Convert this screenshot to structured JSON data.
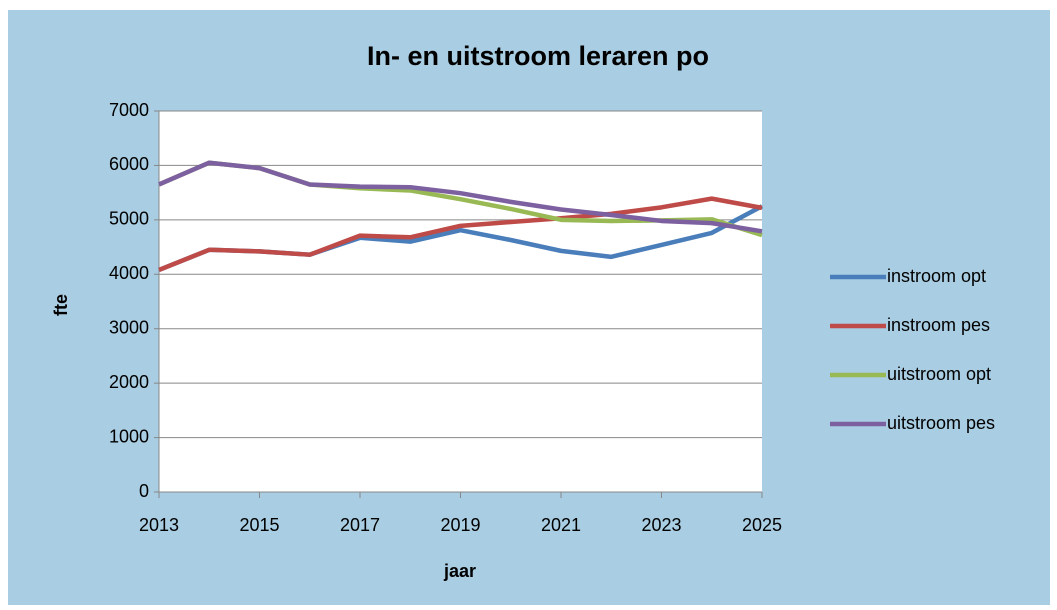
{
  "chart_data": {
    "type": "line",
    "title": "In- en uitstroom leraren po",
    "x_label": "jaar",
    "y_label": "fte",
    "x": [
      2013,
      2014,
      2015,
      2016,
      2017,
      2018,
      2019,
      2020,
      2021,
      2022,
      2023,
      2024,
      2025
    ],
    "series": [
      {
        "name": "instroom opt",
        "color": "#4a7ebb",
        "values": [
          4080,
          4450,
          4420,
          4360,
          4670,
          4600,
          4810,
          4630,
          4430,
          4320,
          4540,
          4760,
          5250
        ]
      },
      {
        "name": "instroom pes",
        "color": "#be4b48",
        "values": [
          4080,
          4450,
          4420,
          4360,
          4710,
          4680,
          4890,
          4960,
          5030,
          5110,
          5230,
          5390,
          5220
        ]
      },
      {
        "name": "uitstroom opt",
        "color": "#98b954",
        "values": [
          5650,
          6050,
          5950,
          5650,
          5580,
          5540,
          5380,
          5200,
          5000,
          4980,
          4990,
          5010,
          4720
        ]
      },
      {
        "name": "uitstroom pes",
        "color": "#7d60a0",
        "values": [
          5650,
          6050,
          5950,
          5650,
          5610,
          5600,
          5490,
          5330,
          5190,
          5090,
          4980,
          4940,
          4790
        ]
      }
    ],
    "xlim": [
      2013,
      2025
    ],
    "xticks": [
      2013,
      2015,
      2017,
      2019,
      2021,
      2023,
      2025
    ],
    "ylim": [
      0,
      7000
    ],
    "yticks": [
      0,
      1000,
      2000,
      3000,
      4000,
      5000,
      6000,
      7000
    ],
    "grid": true,
    "legend": "right"
  }
}
